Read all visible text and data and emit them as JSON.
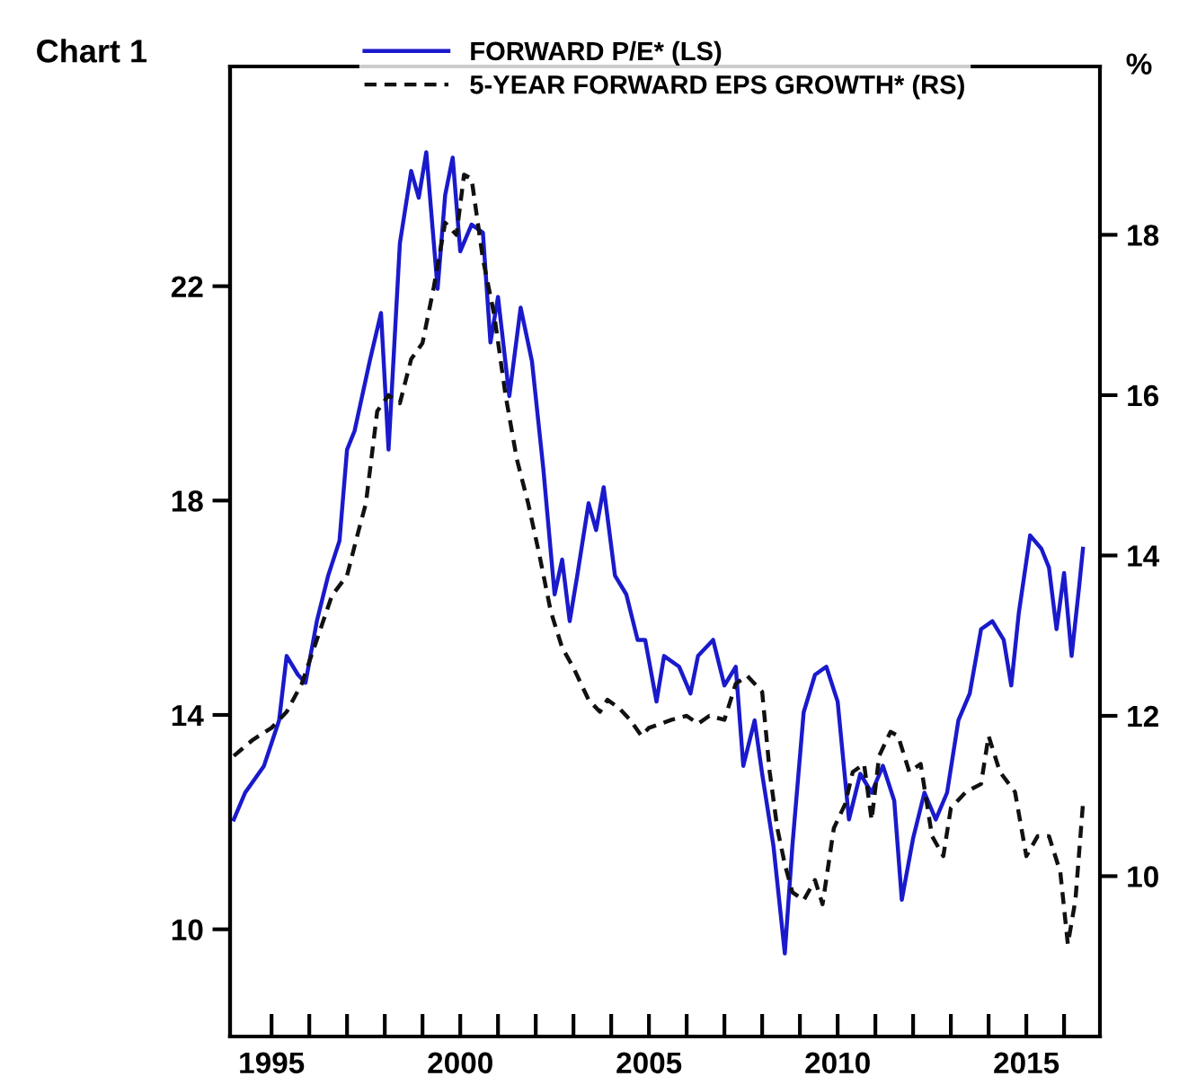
{
  "chart_data": {
    "type": "line",
    "title": "Chart 1",
    "xlim": [
      1993.9,
      2016.95
    ],
    "xticks": [
      1995,
      {
        "value": 1996,
        "label": null
      },
      {
        "value": 1997,
        "label": null
      },
      {
        "value": 1998,
        "label": null
      },
      {
        "value": 1999,
        "label": null
      },
      2000,
      {
        "value": 2001,
        "label": null
      },
      {
        "value": 2002,
        "label": null
      },
      {
        "value": 2003,
        "label": null
      },
      {
        "value": 2004,
        "label": null
      },
      2005,
      {
        "value": 2006,
        "label": null
      },
      {
        "value": 2007,
        "label": null
      },
      {
        "value": 2008,
        "label": null
      },
      {
        "value": 2009,
        "label": null
      },
      2010,
      {
        "value": 2011,
        "label": null
      },
      {
        "value": 2012,
        "label": null
      },
      {
        "value": 2013,
        "label": null
      },
      {
        "value": 2014,
        "label": null
      },
      2015,
      {
        "value": 2016,
        "label": null
      }
    ],
    "ylim": [
      8,
      26.1
    ],
    "yticks": [
      10,
      14,
      18,
      22
    ],
    "y2lim": [
      8,
      20.1
    ],
    "y2ticks": [
      10,
      12,
      14,
      16,
      18
    ],
    "y2label": "%",
    "legend": "top",
    "grid": false,
    "series": [
      {
        "name": "FORWARD P/E* (LS)",
        "color": "#1a1acc",
        "line_style": "solid",
        "x": [
          1994.0,
          1994.3,
          1994.8,
          1995.2,
          1995.4,
          1995.7,
          1995.9,
          1996.2,
          1996.5,
          1996.8,
          1997.0,
          1997.2,
          1997.6,
          1997.9,
          1998.1,
          1998.4,
          1998.7,
          1998.9,
          1999.1,
          1999.4,
          1999.6,
          1999.8,
          2000.0,
          2000.3,
          2000.6,
          2000.8,
          2001.0,
          2001.3,
          2001.6,
          2001.9,
          2002.2,
          2002.5,
          2002.7,
          2002.9,
          2003.1,
          2003.4,
          2003.6,
          2003.8,
          2004.1,
          2004.4,
          2004.7,
          2004.9,
          2005.2,
          2005.4,
          2005.8,
          2006.1,
          2006.3,
          2006.7,
          2007.0,
          2007.3,
          2007.5,
          2007.8,
          2008.0,
          2008.3,
          2008.6,
          2008.8,
          2009.1,
          2009.4,
          2009.7,
          2010.0,
          2010.3,
          2010.6,
          2010.9,
          2011.2,
          2011.5,
          2011.7,
          2012.0,
          2012.3,
          2012.6,
          2012.9,
          2013.2,
          2013.5,
          2013.8,
          2014.1,
          2014.4,
          2014.6,
          2014.8,
          2015.1,
          2015.4,
          2015.6,
          2015.8,
          2016.0,
          2016.2,
          2016.4,
          2016.5
        ],
        "values": [
          12.05,
          12.55,
          13.05,
          13.9,
          15.1,
          14.75,
          14.6,
          15.75,
          16.6,
          17.25,
          18.95,
          19.3,
          20.6,
          21.5,
          18.95,
          22.8,
          24.15,
          23.65,
          24.5,
          21.95,
          23.7,
          24.4,
          22.65,
          23.15,
          23.0,
          20.95,
          21.8,
          19.95,
          21.6,
          20.6,
          18.6,
          16.25,
          16.9,
          15.75,
          16.6,
          17.95,
          17.45,
          18.25,
          16.6,
          16.25,
          15.4,
          15.4,
          14.25,
          15.1,
          14.9,
          14.4,
          15.1,
          15.4,
          14.55,
          14.9,
          13.05,
          13.9,
          12.9,
          11.55,
          9.55,
          11.55,
          14.05,
          14.75,
          14.9,
          14.25,
          12.05,
          12.9,
          12.55,
          13.05,
          12.4,
          10.55,
          11.7,
          12.55,
          12.05,
          12.55,
          13.9,
          14.4,
          15.6,
          15.75,
          15.4,
          14.55,
          15.9,
          17.35,
          17.1,
          16.75,
          15.6,
          16.65,
          15.1,
          16.4,
          17.1
        ]
      },
      {
        "name": "5-YEAR FORWARD EPS GROWTH* (RS)",
        "color": "#111111",
        "line_style": "dashed",
        "axis": "y2",
        "x": [
          1994.0,
          1994.5,
          1995.0,
          1995.4,
          1995.8,
          1996.2,
          1996.6,
          1997.0,
          1997.3,
          1997.5,
          1997.8,
          1998.1,
          1998.4,
          1998.7,
          1999.0,
          1999.3,
          1999.6,
          1999.9,
          2000.1,
          2000.3,
          2000.6,
          2000.9,
          2001.2,
          2001.5,
          2001.8,
          2002.1,
          2002.4,
          2002.7,
          2003.0,
          2003.4,
          2003.7,
          2003.9,
          2004.2,
          2004.5,
          2004.8,
          2005.0,
          2005.3,
          2005.6,
          2006.0,
          2006.3,
          2006.6,
          2007.0,
          2007.3,
          2007.6,
          2008.0,
          2008.2,
          2008.4,
          2008.6,
          2008.8,
          2009.1,
          2009.4,
          2009.6,
          2009.9,
          2010.2,
          2010.4,
          2010.7,
          2010.9,
          2011.1,
          2011.4,
          2011.6,
          2011.9,
          2012.2,
          2012.5,
          2012.8,
          2013.0,
          2013.4,
          2013.8,
          2014.0,
          2014.3,
          2014.7,
          2015.0,
          2015.3,
          2015.6,
          2015.9,
          2016.1,
          2016.3,
          2016.5
        ],
        "values": [
          11.5,
          11.7,
          11.85,
          12.05,
          12.4,
          12.95,
          13.5,
          13.75,
          14.3,
          14.65,
          15.8,
          16.0,
          15.9,
          16.45,
          16.65,
          17.35,
          18.15,
          18.0,
          18.75,
          18.7,
          17.7,
          17.0,
          16.0,
          15.2,
          14.65,
          14.0,
          13.3,
          12.85,
          12.6,
          12.2,
          12.05,
          12.2,
          12.1,
          11.95,
          11.75,
          11.85,
          11.9,
          11.95,
          12.0,
          11.9,
          12.0,
          11.95,
          12.4,
          12.5,
          12.3,
          11.3,
          10.6,
          10.15,
          9.8,
          9.7,
          9.95,
          9.65,
          10.6,
          10.9,
          11.3,
          11.4,
          10.7,
          11.5,
          11.8,
          11.75,
          11.3,
          11.4,
          10.5,
          10.25,
          10.85,
          11.05,
          11.15,
          11.75,
          11.3,
          11.05,
          10.25,
          10.5,
          10.5,
          10.05,
          9.15,
          9.7,
          10.9
        ]
      }
    ]
  }
}
